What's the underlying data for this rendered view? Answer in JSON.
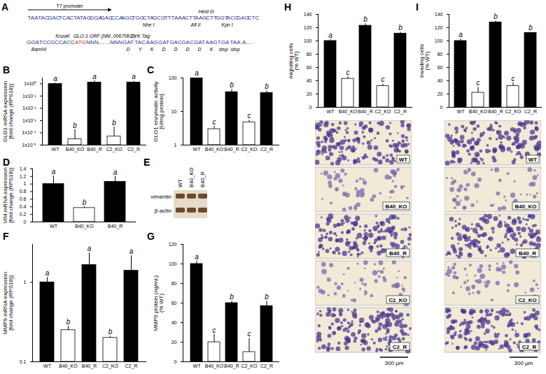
{
  "panel_A": {
    "panel": "A",
    "line1": [
      "TAA",
      "TAC",
      "GAC",
      "TCA",
      "CTA",
      "TAG",
      "GGA",
      "GAC",
      "CCA",
      "AGC",
      "TGG",
      "CTA",
      "GCG",
      "TTT",
      "AAA",
      "CTT",
      "AAG",
      "CTT",
      "GGT",
      "ACC",
      "GAG",
      "CTC"
    ],
    "line2": [
      "GGA",
      "TCC",
      "GCC",
      "ACC",
      "ATG",
      "NNN",
      "........",
      "NNN",
      "GAT",
      "TAC",
      "AAG",
      "GAT",
      "GAC",
      "GAC",
      "GAT",
      "AAG",
      "TGA",
      "TAA",
      "A...."
    ],
    "labels": [
      {
        "text": "T7 promoter",
        "line": 1,
        "side": "above",
        "span": [
          0,
          5
        ],
        "arrow": true
      },
      {
        "text": "Hind III",
        "line": 1,
        "side": "above",
        "span": [
          16,
          17
        ]
      },
      {
        "text": "Nhe I",
        "line": 1,
        "side": "below",
        "span": [
          10,
          12
        ]
      },
      {
        "text": "Afl II",
        "line": 1,
        "side": "below",
        "span": [
          15,
          16
        ]
      },
      {
        "text": "Kpn I",
        "line": 1,
        "side": "below",
        "span": [
          18,
          19
        ]
      },
      {
        "text": "KozaK",
        "line": 2,
        "side": "above",
        "span": [
          2,
          3
        ]
      },
      {
        "text": "GLO-1 ORF (NM_006708.2)",
        "line": 2,
        "side": "above",
        "span": [
          5,
          7
        ]
      },
      {
        "text": "DYK Tag",
        "line": 2,
        "side": "above",
        "span": [
          8,
          10
        ]
      },
      {
        "text": "BamHI",
        "line": 2,
        "side": "below",
        "span": [
          0,
          1
        ]
      },
      {
        "text": "D",
        "line": 2,
        "side": "below",
        "span": [
          8,
          8
        ]
      },
      {
        "text": "Y",
        "line": 2,
        "side": "below",
        "span": [
          9,
          9
        ]
      },
      {
        "text": "K",
        "line": 2,
        "side": "below",
        "span": [
          10,
          10
        ]
      },
      {
        "text": "D",
        "line": 2,
        "side": "below",
        "span": [
          11,
          11
        ]
      },
      {
        "text": "D",
        "line": 2,
        "side": "below",
        "span": [
          12,
          12
        ]
      },
      {
        "text": "D",
        "line": 2,
        "side": "below",
        "span": [
          13,
          13
        ]
      },
      {
        "text": "D",
        "line": 2,
        "side": "below",
        "span": [
          14,
          14
        ]
      },
      {
        "text": "K",
        "line": 2,
        "side": "below",
        "span": [
          15,
          15
        ]
      },
      {
        "text": "stop",
        "line": 2,
        "side": "below",
        "span": [
          16,
          16
        ]
      },
      {
        "text": "stop",
        "line": 2,
        "side": "below",
        "span": [
          17,
          17
        ]
      }
    ]
  },
  "panel_E": {
    "panel": "E",
    "lanes": [
      "WT",
      "B40_KO",
      "B40_R"
    ],
    "bands": [
      "vimentin",
      "β-actin"
    ]
  },
  "chart_data": [
    {
      "panel": "B",
      "type": "bar",
      "ylabel": "GLO1 mRNA expression\n[fold change (RPS18)]",
      "categories": [
        "WT",
        "B40_KO",
        "B40_R",
        "C2_KO",
        "C2_R"
      ],
      "values": [
        1,
        3e-05,
        1.3,
        5e-05,
        1.3
      ],
      "errors": [
        0.15,
        0.00015,
        0.5,
        0.00025,
        0.3
      ],
      "significance": [
        "a",
        "b",
        "a",
        "b",
        "a"
      ],
      "colors": [
        "#000000",
        "#ffffff",
        "#000000",
        "#ffffff",
        "#000000"
      ],
      "log": "y",
      "ylim": [
        1e-05,
        3
      ],
      "yticks": [
        {
          "value": 1e-05,
          "label": "1x10⁻⁵"
        },
        {
          "value": 0.0001,
          "label": "1x10⁻⁴"
        },
        {
          "value": 0.001,
          "label": "1x10⁻³"
        },
        {
          "value": 0.01,
          "label": "1x10⁻²"
        },
        {
          "value": 0.1,
          "label": "1x10⁻¹"
        },
        {
          "value": 1,
          "label": "1x10⁰"
        }
      ]
    },
    {
      "panel": "C",
      "type": "bar",
      "ylabel": "GLO1 enzymatic activity\n[U/mg protein]",
      "categories": [
        "WT",
        "B40_KO",
        "B40_R",
        "C2_KO",
        "C2_R"
      ],
      "values": [
        100,
        3,
        38,
        4.8,
        36
      ],
      "errors": [
        3,
        0.6,
        8,
        0.7,
        6
      ],
      "significance": [
        "a",
        "c",
        "b",
        "c",
        "b"
      ],
      "colors": [
        "#000000",
        "#ffffff",
        "#000000",
        "#ffffff",
        "#000000"
      ],
      "log": "y",
      "ylim": [
        1,
        100
      ],
      "yticks": [
        1,
        10,
        100
      ]
    },
    {
      "panel": "D",
      "type": "bar",
      "ylabel": "VIM mRNA expression\n[fold change (RPS18)]",
      "categories": [
        "WT",
        "B40_KO",
        "B40_R"
      ],
      "values": [
        1.0,
        0.37,
        1.06
      ],
      "errors": [
        0.21,
        0.03,
        0.14
      ],
      "significance": [
        "a",
        "b",
        "a"
      ],
      "colors": [
        "#000000",
        "#ffffff",
        "#000000"
      ],
      "ylim": [
        0,
        1.4
      ],
      "yticks": [
        0,
        0.2,
        0.4,
        0.6,
        0.8,
        1,
        1.2,
        1.4
      ]
    },
    {
      "panel": "F",
      "type": "bar",
      "ylabel": "MMP9 mRNA expression\n[fold change (RPS18)]",
      "categories": [
        "WT",
        "B40_KO",
        "B40_R",
        "C2_KO",
        "C2_R"
      ],
      "values": [
        1.0,
        0.25,
        1.65,
        0.2,
        1.4
      ],
      "errors": [
        0.15,
        0.03,
        0.7,
        0.01,
        0.75
      ],
      "significance": [
        "a",
        "b",
        "a",
        "b",
        "a"
      ],
      "colors": [
        "#000000",
        "#ffffff",
        "#000000",
        "#ffffff",
        "#000000"
      ],
      "log": "y",
      "ylim": [
        0.1,
        3
      ],
      "yticks": [
        0.1,
        1
      ]
    },
    {
      "panel": "G",
      "type": "bar",
      "ylabel": "MMP9 protein (ng/mL)\n(% WT)",
      "categories": [
        "WT",
        "B40_KO",
        "B40_R",
        "C2_KO",
        "C2_R"
      ],
      "values": [
        100,
        20,
        60,
        10,
        57
      ],
      "errors": [
        3,
        8,
        2,
        14,
        5
      ],
      "significance": [
        "a",
        "c",
        "b",
        "c",
        "b"
      ],
      "colors": [
        "#000000",
        "#ffffff",
        "#000000",
        "#ffffff",
        "#000000"
      ],
      "ylim": [
        0,
        120
      ],
      "yticks": [
        0,
        20,
        40,
        60,
        80,
        100,
        120
      ]
    },
    {
      "panel": "H",
      "type": "bar",
      "ylabel": "migrating cells\n(% WT)",
      "categories": [
        "WT",
        "B40_KO",
        "B40_R",
        "C2_KO",
        "C2_R"
      ],
      "values": [
        100,
        43,
        123,
        32,
        111
      ],
      "errors": [
        2,
        3,
        3,
        3,
        2
      ],
      "significance": [
        "a",
        "c",
        "b",
        "c",
        "b"
      ],
      "colors": [
        "#000000",
        "#ffffff",
        "#000000",
        "#ffffff",
        "#000000"
      ],
      "ylim": [
        0,
        140
      ],
      "yticks": [
        0,
        20,
        40,
        60,
        80,
        100,
        120,
        140
      ],
      "scale_bar": "300 µm"
    },
    {
      "panel": "I",
      "type": "bar",
      "ylabel": "invading cells\n(% WT)",
      "categories": [
        "WT",
        "B40_KO",
        "B40_R",
        "C2_KO",
        "C2_R"
      ],
      "values": [
        100,
        22,
        128,
        32,
        112
      ],
      "errors": [
        3,
        8,
        2,
        5,
        1
      ],
      "significance": [
        "a",
        "c",
        "b",
        "c",
        "b"
      ],
      "colors": [
        "#000000",
        "#ffffff",
        "#000000",
        "#ffffff",
        "#000000"
      ],
      "ylim": [
        0,
        140
      ],
      "yticks": [
        0,
        20,
        40,
        60,
        80,
        100,
        120,
        140
      ],
      "scale_bar": "300 µm"
    }
  ]
}
